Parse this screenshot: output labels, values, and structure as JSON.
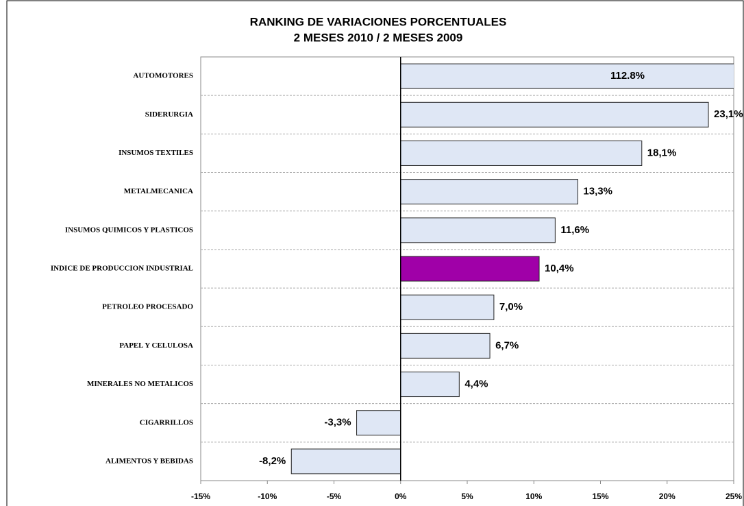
{
  "chart_data": {
    "type": "hbar",
    "title": "RANKING DE VARIACIONES PORCENTUALES",
    "subtitle": "2 MESES 2010 / 2 MESES 2009",
    "categories": [
      "AUTOMOTORES",
      "SIDERURGIA",
      "INSUMOS TEXTILES",
      "METALMECANICA",
      "INSUMOS QUIMICOS Y PLASTICOS",
      "INDICE DE PRODUCCION INDUSTRIAL",
      "PETROLEO PROCESADO",
      "PAPEL Y  CELULOSA",
      "MINERALES NO METALICOS",
      "CIGARRILLOS",
      "ALIMENTOS Y BEBIDAS"
    ],
    "values": [
      112.8,
      23.1,
      18.1,
      13.3,
      11.6,
      10.4,
      7.0,
      6.7,
      4.4,
      -3.3,
      -8.2
    ],
    "value_labels": [
      "112.8%",
      "23,1%",
      "18,1%",
      "13,3%",
      "11,6%",
      "10,4%",
      "7,0%",
      "6,7%",
      "4,4%",
      "-3,3%",
      "-8,2%"
    ],
    "colors": [
      "#dfe7f5",
      "#dfe7f5",
      "#dfe7f5",
      "#dfe7f5",
      "#dfe7f5",
      "#a000a8",
      "#dfe7f5",
      "#dfe7f5",
      "#dfe7f5",
      "#dfe7f5",
      "#dfe7f5"
    ],
    "xlim": [
      -15,
      25
    ],
    "xticks": [
      {
        "value": -15,
        "label": "-15%"
      },
      {
        "value": -10,
        "label": "-10%"
      },
      {
        "value": -5,
        "label": "-5%"
      },
      {
        "value": 0,
        "label": "0%"
      },
      {
        "value": 5,
        "label": "5%"
      },
      {
        "value": 10,
        "label": "10%"
      },
      {
        "value": 15,
        "label": "15%"
      },
      {
        "value": 20,
        "label": "20%"
      },
      {
        "value": 25,
        "label": "25%"
      }
    ]
  }
}
